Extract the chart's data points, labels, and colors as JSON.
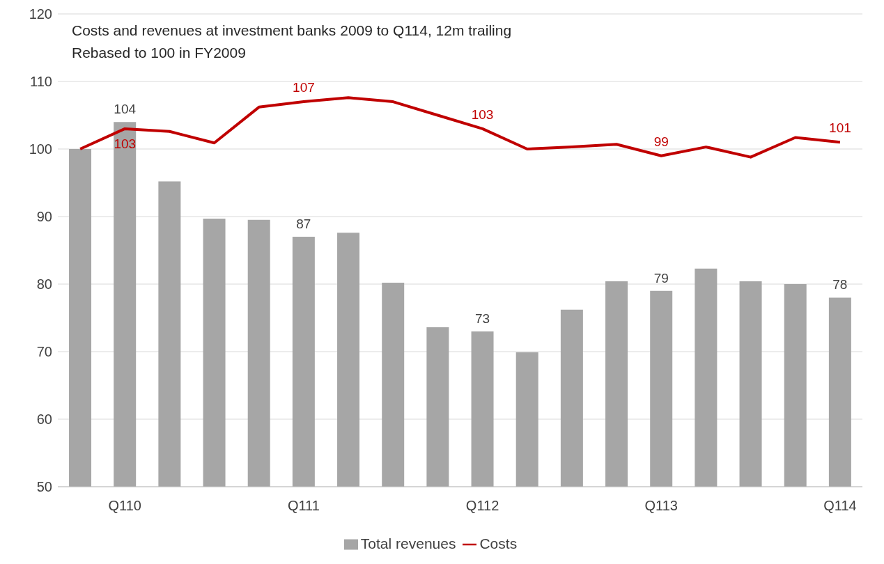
{
  "chart_data": {
    "type": "bar",
    "title": "Costs and revenues at investment banks 2009 to Q114, 12m trailing",
    "subtitle": "Rebased to 100 in FY2009",
    "categories": [
      null,
      "Q110",
      null,
      null,
      null,
      "Q111",
      null,
      null,
      null,
      "Q112",
      null,
      null,
      null,
      "Q113",
      null,
      null,
      null,
      "Q114"
    ],
    "series": [
      {
        "name": "Total revenues",
        "color": "#a6a6a6",
        "values": [
          100,
          104,
          95.2,
          89.7,
          89.5,
          87,
          87.6,
          80.2,
          73.6,
          73,
          69.9,
          76.2,
          80.4,
          79,
          82.3,
          80.4,
          80,
          78
        ],
        "value_labels": [
          null,
          "104",
          null,
          null,
          null,
          "87",
          null,
          null,
          null,
          "73",
          null,
          null,
          null,
          "79",
          null,
          null,
          null,
          "78"
        ]
      },
      {
        "name": "Costs",
        "type": "line",
        "color": "#c00000",
        "values": [
          100,
          103,
          102.6,
          100.9,
          106.2,
          107,
          107.6,
          107,
          105,
          103,
          100,
          100.3,
          100.7,
          99,
          100.3,
          98.8,
          101.7,
          101
        ],
        "value_labels": [
          null,
          "103",
          null,
          null,
          null,
          "107",
          null,
          null,
          null,
          "103",
          null,
          null,
          null,
          "99",
          null,
          null,
          null,
          "101"
        ]
      }
    ],
    "ylim": [
      50,
      120
    ],
    "yticks": [
      50,
      60,
      70,
      80,
      90,
      100,
      110,
      120
    ],
    "grid": "y",
    "legend": "bottom",
    "marker": "none",
    "line_style": "solid"
  }
}
